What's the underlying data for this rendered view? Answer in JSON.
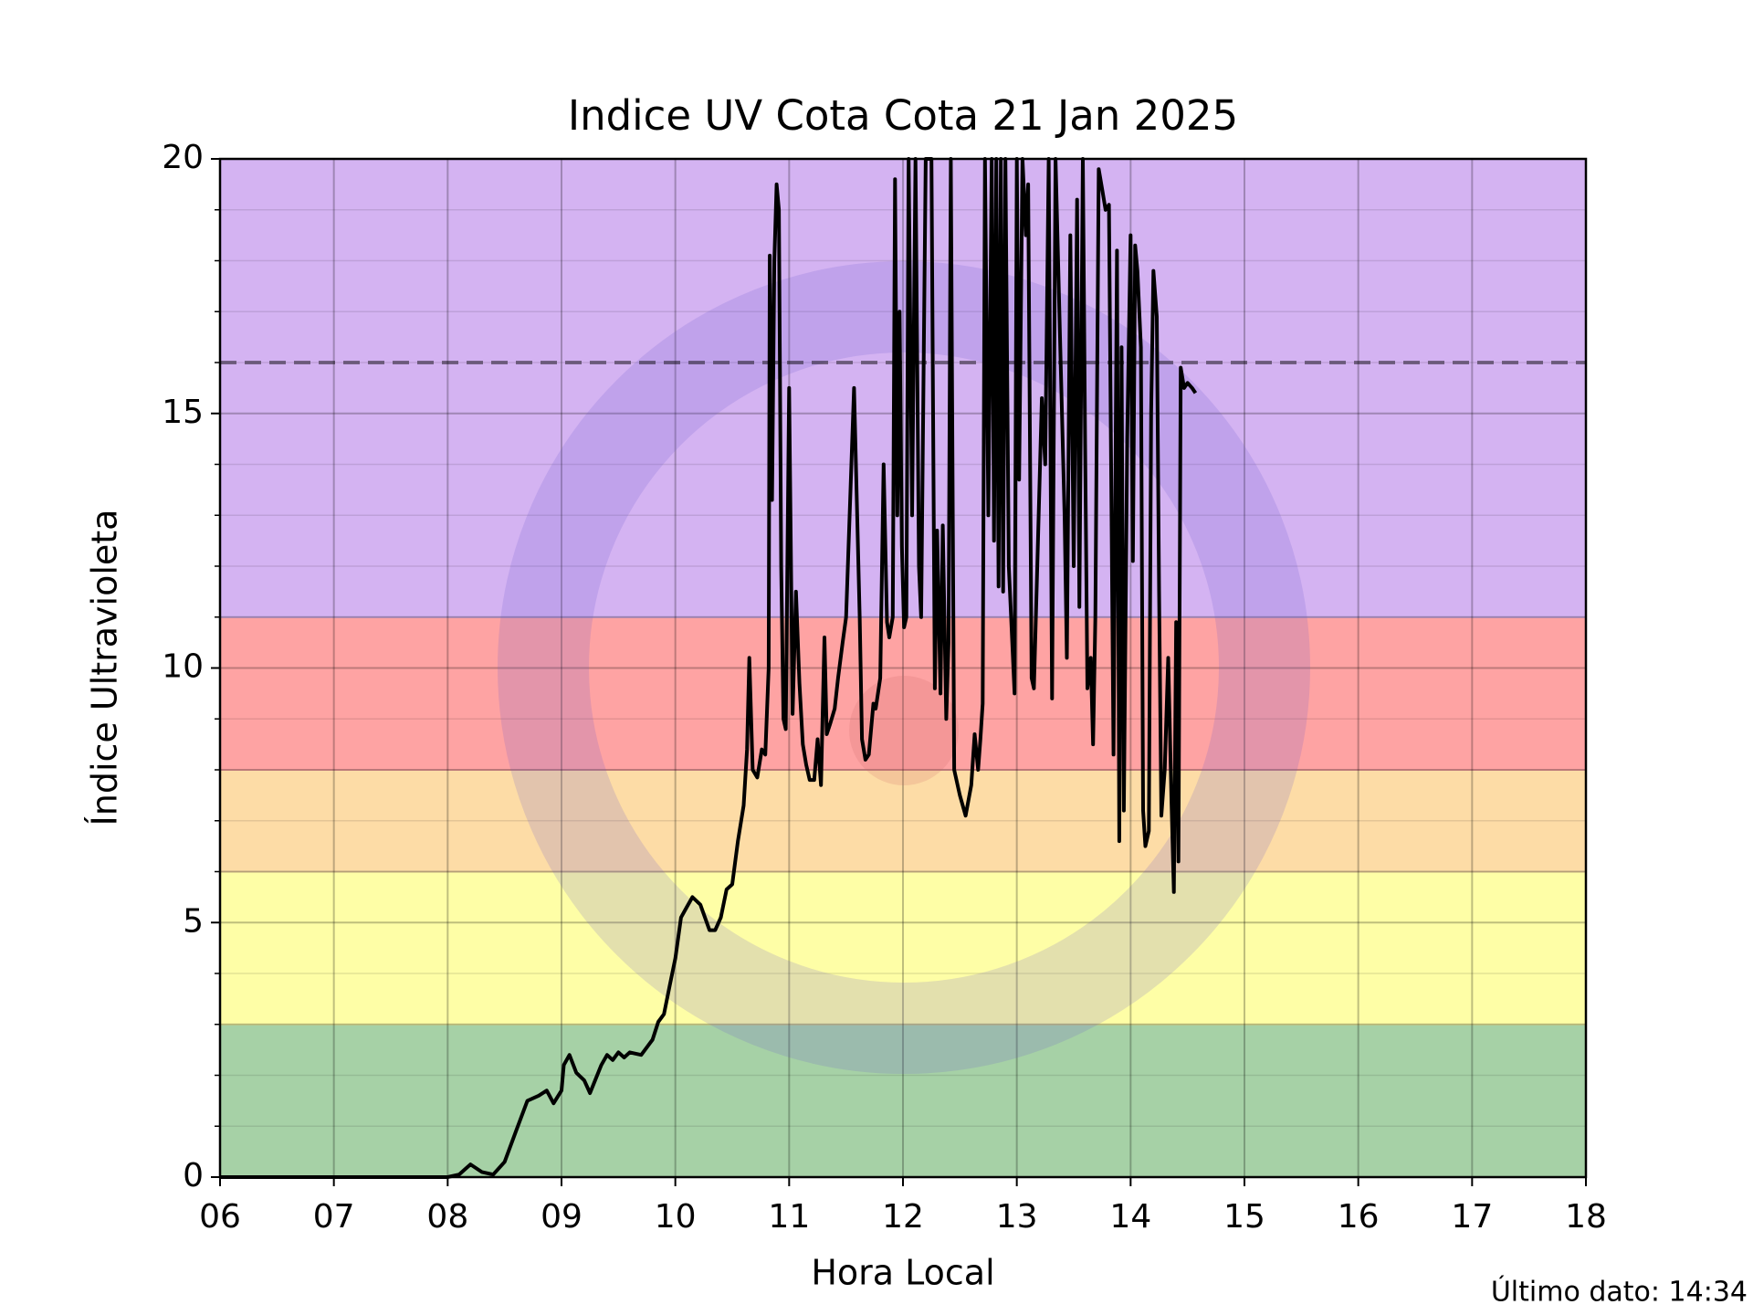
{
  "chart_data": {
    "type": "line",
    "title": "Indice UV Cota Cota 21 Jan 2025",
    "xlabel": "Hora Local",
    "ylabel": "Índice Ultravioleta",
    "footnote": "Último dato: 14:34",
    "color": "#000000",
    "x": [
      6.0,
      8.0,
      8.1,
      8.2,
      8.3,
      8.4,
      8.5,
      8.6,
      8.7,
      8.8,
      8.87,
      8.93,
      9.0,
      9.02,
      9.07,
      9.13,
      9.2,
      9.25,
      9.35,
      9.4,
      9.45,
      9.5,
      9.55,
      9.6,
      9.7,
      9.8,
      9.85,
      9.9,
      9.95,
      10.0,
      10.05,
      10.1,
      10.15,
      10.22,
      10.3,
      10.35,
      10.4,
      10.45,
      10.5,
      10.55,
      10.6,
      10.63,
      10.65,
      10.68,
      10.72,
      10.76,
      10.79,
      10.82,
      10.83,
      10.85,
      10.87,
      10.89,
      10.91,
      10.93,
      10.95,
      10.97,
      11.0,
      11.03,
      11.06,
      11.09,
      11.12,
      11.15,
      11.18,
      11.22,
      11.25,
      11.28,
      11.31,
      11.33,
      11.36,
      11.4,
      11.43,
      11.47,
      11.5,
      11.57,
      11.62,
      11.64,
      11.67,
      11.7,
      11.74,
      11.76,
      11.8,
      11.83,
      11.86,
      11.88,
      11.91,
      11.93,
      11.95,
      11.97,
      11.99,
      12.01,
      12.03,
      12.05,
      12.08,
      12.11,
      12.14,
      12.16,
      12.2,
      12.25,
      12.28,
      12.3,
      12.33,
      12.35,
      12.38,
      12.4,
      12.42,
      12.45,
      12.5,
      12.55,
      12.6,
      12.63,
      12.66,
      12.68,
      12.7,
      12.72,
      12.75,
      12.78,
      12.8,
      12.82,
      12.84,
      12.86,
      12.88,
      12.9,
      12.93,
      12.96,
      12.98,
      13.0,
      13.02,
      13.05,
      13.08,
      13.1,
      13.13,
      13.15,
      13.18,
      13.22,
      13.25,
      13.28,
      13.31,
      13.34,
      13.38,
      13.42,
      13.44,
      13.47,
      13.5,
      13.53,
      13.55,
      13.58,
      13.6,
      13.62,
      13.65,
      13.67,
      13.69,
      13.72,
      13.75,
      13.78,
      13.81,
      13.85,
      13.88,
      13.9,
      13.92,
      13.94,
      13.97,
      14.0,
      14.02,
      14.04,
      14.06,
      14.09,
      14.11,
      14.13,
      14.16,
      14.18,
      14.2,
      14.23,
      14.25,
      14.27,
      14.3,
      14.33,
      14.36,
      14.38,
      14.4,
      14.42,
      14.44,
      14.47,
      14.5,
      14.54,
      14.57
    ],
    "values": [
      0,
      0,
      0.05,
      0.25,
      0.1,
      0.05,
      0.3,
      0.9,
      1.5,
      1.6,
      1.7,
      1.45,
      1.7,
      2.2,
      2.4,
      2.05,
      1.9,
      1.65,
      2.2,
      2.4,
      2.3,
      2.45,
      2.35,
      2.45,
      2.4,
      2.7,
      3.05,
      3.2,
      3.75,
      4.3,
      5.1,
      5.3,
      5.5,
      5.35,
      4.85,
      4.85,
      5.1,
      5.65,
      5.75,
      6.6,
      7.3,
      8.4,
      10.2,
      8.0,
      7.85,
      8.4,
      8.3,
      10.0,
      18.1,
      13.3,
      18.0,
      19.5,
      19.0,
      12.0,
      9.0,
      8.8,
      15.5,
      9.1,
      11.5,
      9.7,
      8.5,
      8.1,
      7.8,
      7.8,
      8.6,
      7.7,
      10.6,
      8.7,
      8.9,
      9.2,
      9.8,
      10.5,
      11.0,
      15.5,
      11.0,
      8.6,
      8.2,
      8.3,
      9.3,
      9.2,
      9.8,
      14.0,
      10.9,
      10.6,
      11.0,
      19.6,
      13.0,
      17.0,
      12.4,
      10.8,
      11.0,
      20,
      13.0,
      20,
      12.0,
      11.0,
      20,
      20,
      9.6,
      12.7,
      9.5,
      12.8,
      9.0,
      10.5,
      20,
      8.0,
      7.5,
      7.1,
      7.7,
      8.7,
      8.0,
      8.6,
      9.3,
      20,
      13.0,
      20,
      12.5,
      20,
      11.6,
      20,
      11.5,
      20,
      12.0,
      10.5,
      9.5,
      20,
      13.7,
      20,
      18.5,
      19.5,
      9.8,
      9.6,
      12.0,
      15.3,
      14.0,
      20,
      9.4,
      20,
      16.5,
      13.0,
      10.2,
      18.5,
      12.0,
      19.2,
      11.2,
      20,
      14.4,
      9.6,
      10.2,
      8.5,
      11.0,
      19.8,
      19.4,
      19.0,
      19.1,
      8.3,
      18.2,
      6.6,
      16.3,
      7.2,
      14.5,
      18.5,
      12.1,
      18.3,
      17.8,
      16.3,
      7.2,
      6.5,
      6.8,
      15.0,
      17.8,
      16.9,
      11.5,
      7.1,
      8.0,
      10.2,
      7.3,
      5.6,
      10.9,
      6.2,
      15.9,
      15.5,
      15.6,
      15.5,
      15.4
    ],
    "xlim": [
      6,
      18
    ],
    "xticks": [
      {
        "value": 6,
        "label": "06"
      },
      {
        "value": 7,
        "label": "07"
      },
      {
        "value": 8,
        "label": "08"
      },
      {
        "value": 9,
        "label": "09"
      },
      10,
      11,
      12,
      13,
      14,
      15,
      16,
      17,
      18
    ],
    "ylim": [
      0,
      20
    ],
    "yticks": [
      0,
      5,
      10,
      15,
      20
    ],
    "yminorticks": [
      1,
      2,
      3,
      4,
      6,
      7,
      8,
      9,
      11,
      12,
      13,
      14,
      16,
      17,
      18,
      19
    ],
    "grid": true,
    "bands": [
      {
        "from": 0,
        "to": 3,
        "color": "#a6d1a6"
      },
      {
        "from": 3,
        "to": 6,
        "color": "#fefea6"
      },
      {
        "from": 6,
        "to": 8,
        "color": "#fddca6"
      },
      {
        "from": 8,
        "to": 11,
        "color": "#fea3a3"
      },
      {
        "from": 11,
        "to": 20,
        "color": "#d4b3f2"
      }
    ],
    "threshold": 16
  }
}
